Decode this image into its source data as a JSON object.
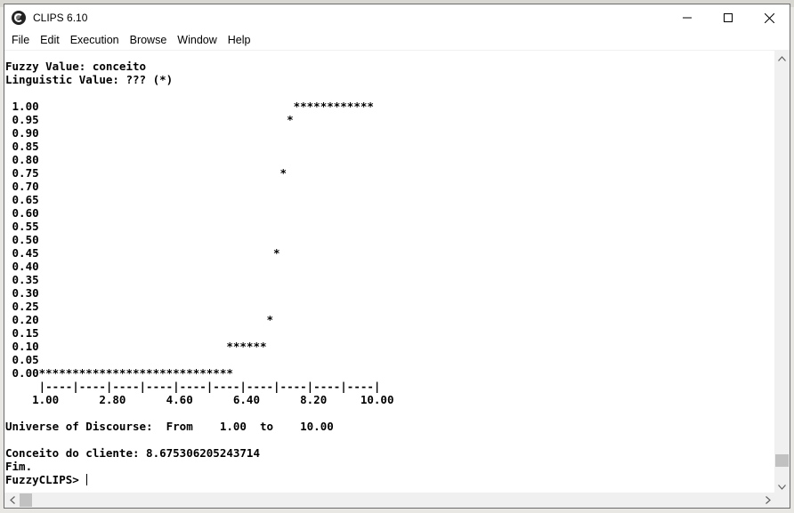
{
  "window": {
    "title": "CLIPS 6.10",
    "controls": {
      "minimize": "minimize-icon",
      "maximize": "maximize-icon",
      "close": "close-icon"
    }
  },
  "menubar": {
    "items": [
      "File",
      "Edit",
      "Execution",
      "Browse",
      "Window",
      "Help"
    ]
  },
  "console": {
    "lines": [
      "Fuzzy Value: conceito",
      "Linguistic Value: ??? (*)",
      "",
      " 1.00                                      ************",
      " 0.95                                     *",
      " 0.90",
      " 0.85",
      " 0.80",
      " 0.75                                    *",
      " 0.70",
      " 0.65",
      " 0.60",
      " 0.55",
      " 0.50",
      " 0.45                                   *",
      " 0.40",
      " 0.35",
      " 0.30",
      " 0.25",
      " 0.20                                  *",
      " 0.15",
      " 0.10                            ******",
      " 0.05",
      " 0.00*****************************",
      "     |----|----|----|----|----|----|----|----|----|----|",
      "    1.00      2.80      4.60      6.40      8.20     10.00",
      "",
      "Universe of Discourse:  From    1.00  to    10.00",
      "",
      "Conceito do cliente: 8.675306205243714",
      "Fim.",
      "FuzzyCLIPS> "
    ]
  },
  "scrollbars": {
    "vertical": {
      "position": 0.97
    },
    "horizontal": {
      "position": 0.0
    }
  }
}
